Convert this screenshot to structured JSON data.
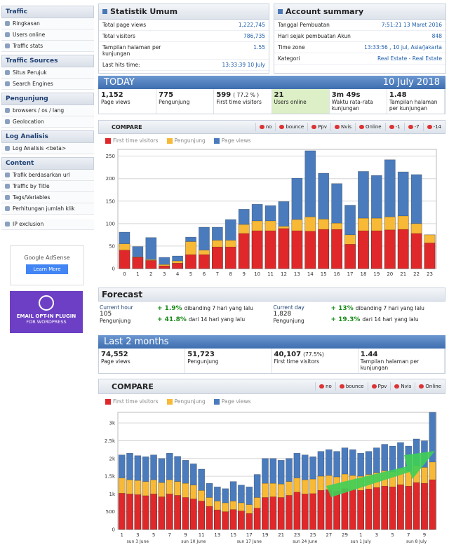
{
  "sidebar": {
    "sections": [
      {
        "title": "Traffic",
        "items": [
          "Ringkasan",
          "Users online",
          "Traffic stats"
        ]
      },
      {
        "title": "Traffic Sources",
        "items": [
          "Situs Perujuk",
          "Search Engines"
        ]
      },
      {
        "title": "Pengunjung",
        "items": [
          "browsers / os / lang",
          "Geolocation"
        ]
      },
      {
        "title": "Log Analisis",
        "items": [
          "Log Analisis <beta>"
        ]
      },
      {
        "title": "Content",
        "items": [
          "Trafik berdasarkan url",
          "Traffic by Title",
          "Tags/Variables",
          "Perhitungan jumlah klik"
        ]
      }
    ],
    "ip_exclusion": "IP exclusion"
  },
  "ads": {
    "adsense": "Google AdSense",
    "adsense_button": "Learn More",
    "optin_line1": "EMAIL OPT-IN PLUGIN",
    "optin_line2": "FOR WORDPRESS"
  },
  "statistik_umum": {
    "title": "Statistik Umum",
    "rows": [
      [
        "Total page views",
        "1,222,745"
      ],
      [
        "Total visitors",
        "786,735"
      ],
      [
        "Tampilan halaman per kunjungan",
        "1.55"
      ],
      [
        "Last hits time:",
        "13:33:39 10 July"
      ]
    ]
  },
  "account_summary": {
    "title": "Account summary",
    "rows": [
      [
        "Tanggal Pembuatan",
        "7:51:21 13 Maret 2016"
      ],
      [
        "Hari sejak pembuatan Akun",
        "848"
      ],
      [
        "Time zone",
        "13:33:56 , 10 jul, Asia/Jakarta"
      ],
      [
        "Kategori",
        "Real Estate - Real Estate"
      ]
    ]
  },
  "today": {
    "title": "TODAY",
    "date": "10 July 2018",
    "stats": [
      {
        "value": "1,152",
        "label": "Page views"
      },
      {
        "value": "775",
        "label": "Pengunjung"
      },
      {
        "value": "599",
        "extra": "( 77.2 % )",
        "label": "First time visitors"
      },
      {
        "value": "21",
        "label": "Users online"
      },
      {
        "value": "3m 49s",
        "label": "Waktu rata-rata kunjungan"
      },
      {
        "value": "1.48",
        "label": "Tampilan halaman per kunjungan"
      }
    ]
  },
  "compare_today": {
    "title": "COMPARE",
    "buttons": [
      "no",
      "bounce",
      "Ppv",
      "Nvis",
      "Online",
      "-1",
      "-7",
      "-14"
    ]
  },
  "chart_today": {
    "type": "bar",
    "categories": [
      "0",
      "1",
      "2",
      "3",
      "4",
      "5",
      "6",
      "7",
      "8",
      "9",
      "10",
      "11",
      "12",
      "13",
      "14",
      "15",
      "16",
      "17",
      "18",
      "19",
      "20",
      "21",
      "22",
      "23"
    ],
    "series": [
      {
        "name": "First time visitors",
        "color": "#e0282b",
        "values": [
          41,
          25,
          18,
          6,
          12,
          31,
          31,
          48,
          48,
          78,
          84,
          84,
          89,
          84,
          83,
          87,
          87,
          54,
          84,
          84,
          86,
          87,
          78,
          57
        ]
      },
      {
        "name": "Pengunjung",
        "color": "#f7b936",
        "values": [
          55,
          26,
          20,
          9,
          17,
          60,
          41,
          63,
          63,
          98,
          106,
          106,
          94,
          109,
          115,
          110,
          101,
          75,
          112,
          112,
          115,
          117,
          100,
          75
        ]
      },
      {
        "name": "Page views",
        "color": "#4a7bbd",
        "values": [
          81,
          49,
          69,
          25,
          28,
          70,
          92,
          92,
          109,
          132,
          143,
          140,
          149,
          201,
          262,
          212,
          189,
          141,
          216,
          207,
          242,
          215,
          209,
          75
        ]
      }
    ],
    "ylim": [
      0,
      265
    ],
    "yticks": [
      0,
      50,
      100,
      150,
      200,
      250
    ]
  },
  "forecast": {
    "title": "Forecast",
    "blocks": [
      {
        "label": "Current hour",
        "value": "105",
        "unit": "Pengunjung",
        "changes": [
          {
            "pct": "+ 1.9%",
            "text": "dibanding 7 hari yang lalu"
          },
          {
            "pct": "+ 41.8%",
            "text": "dari 14 hari yang lalu"
          }
        ]
      },
      {
        "label": "Current day",
        "value": "1,828",
        "unit": "Pengunjung",
        "changes": [
          {
            "pct": "+ 13%",
            "text": "dibanding 7 hari yang lalu"
          },
          {
            "pct": "+ 19.3%",
            "text": "dari 14 hari yang lalu"
          }
        ]
      }
    ]
  },
  "last2": {
    "title": "Last 2 months",
    "stats": [
      {
        "value": "74,552",
        "label": "Page views"
      },
      {
        "value": "51,723",
        "label": "Pengunjung"
      },
      {
        "value": "40,107",
        "extra": "(77.5%)",
        "label": "First time visitors"
      },
      {
        "value": "1.44",
        "label": "Tampilan halaman per kunjungan"
      }
    ]
  },
  "compare_months": {
    "title": "COMPARE",
    "buttons": [
      "no",
      "bounce",
      "Ppv",
      "Nvis",
      "Online"
    ]
  },
  "chart_months": {
    "type": "bar",
    "categories": [
      "1",
      null,
      "3",
      null,
      "5",
      null,
      "7",
      null,
      "9",
      null,
      "11",
      null,
      "13",
      null,
      "15",
      null,
      "17",
      null,
      "19",
      null,
      "21",
      null,
      "23",
      null,
      "25",
      null,
      "27",
      null,
      "29",
      null,
      "1",
      null,
      "3",
      null,
      "5",
      null,
      "7",
      null,
      "9",
      null
    ],
    "x_sublabels": [
      null,
      null,
      "sun 3 June",
      null,
      null,
      null,
      null,
      null,
      null,
      "sun 10 June",
      null,
      null,
      null,
      null,
      null,
      null,
      "sun 17 June",
      null,
      null,
      null,
      null,
      null,
      null,
      "sun 24 June",
      null,
      null,
      null,
      null,
      null,
      null,
      "sun 1 July",
      null,
      null,
      null,
      null,
      null,
      null,
      "sun 8 July",
      null,
      null
    ],
    "series": [
      {
        "name": "First time visitors",
        "color": "#e0282b",
        "values": [
          1020,
          1000,
          980,
          950,
          1000,
          920,
          1000,
          960,
          900,
          860,
          800,
          650,
          550,
          500,
          560,
          520,
          450,
          600,
          900,
          920,
          900,
          960,
          1050,
          1000,
          1010,
          1100,
          1120,
          1080,
          1150,
          1120,
          1100,
          1140,
          1180,
          1220,
          1200,
          1260,
          1220,
          1320,
          1300,
          1400
        ]
      },
      {
        "name": "Pengunjung",
        "color": "#f7b936",
        "values": [
          1450,
          1400,
          1380,
          1350,
          1400,
          1320,
          1400,
          1350,
          1300,
          1250,
          1100,
          900,
          800,
          750,
          800,
          750,
          700,
          900,
          1300,
          1300,
          1280,
          1350,
          1450,
          1400,
          1420,
          1500,
          1520,
          1480,
          1560,
          1520,
          1500,
          1550,
          1600,
          1650,
          1620,
          1700,
          1650,
          1800,
          1750,
          1900
        ]
      },
      {
        "name": "Page views",
        "color": "#4a7bbd",
        "values": [
          2100,
          2150,
          2080,
          2050,
          2100,
          2000,
          2150,
          2060,
          1950,
          1850,
          1700,
          1300,
          1200,
          1150,
          1350,
          1250,
          1200,
          1550,
          2000,
          2000,
          1950,
          2000,
          2150,
          2100,
          2050,
          2200,
          2250,
          2200,
          2300,
          2250,
          2150,
          2200,
          2300,
          2400,
          2350,
          2450,
          2350,
          2550,
          2500,
          3300
        ]
      }
    ],
    "ylim": [
      0,
      3300
    ],
    "yticks": [
      0,
      500,
      {
        "value": 1000,
        "label": "1k"
      },
      {
        "value": 1500,
        "label": "1.5k"
      },
      {
        "value": 2000,
        "label": "2k"
      },
      {
        "value": 2500,
        "label": "2.5k"
      },
      {
        "value": 3000,
        "label": "3k"
      }
    ]
  }
}
